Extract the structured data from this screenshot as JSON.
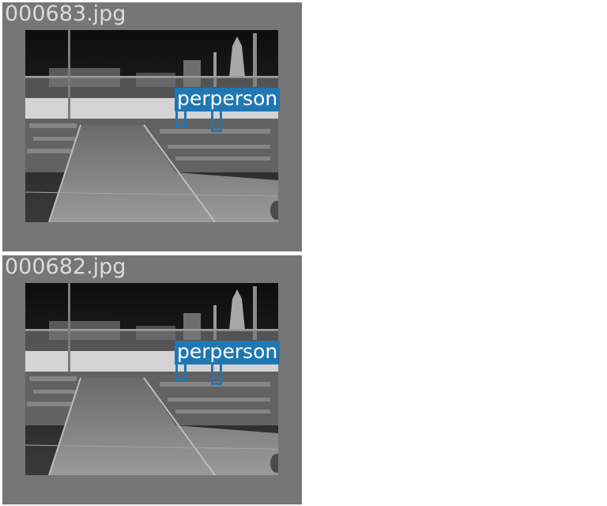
{
  "tiles": [
    {
      "filename": "000683.jpg",
      "detections": [
        {
          "label": "perperson"
        }
      ]
    },
    {
      "filename": "000682.jpg",
      "detections": [
        {
          "label": "perperson"
        }
      ]
    }
  ],
  "colors": {
    "tile_background": "#767676",
    "detection_box": "#1f77b4",
    "filename_text": "#dcdcdc"
  }
}
